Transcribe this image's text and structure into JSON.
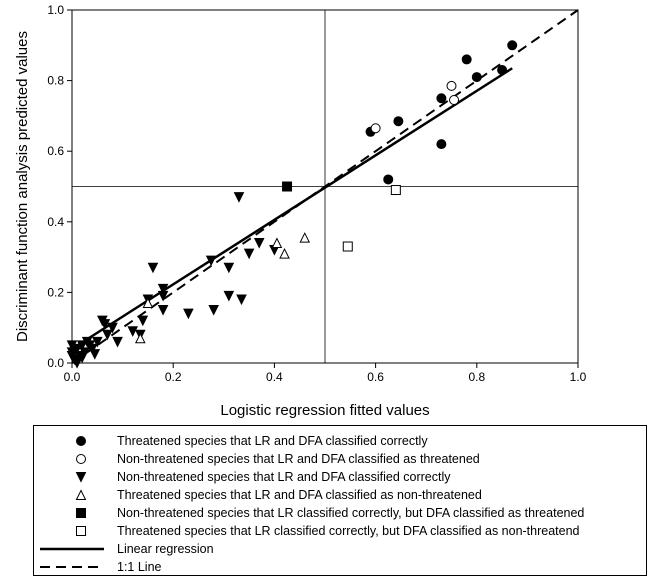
{
  "chart_data": {
    "type": "scatter",
    "xlabel": "Logistic regression fitted values",
    "ylabel": "Discriminant function analysis predicted values",
    "xlim": [
      0,
      1.0
    ],
    "ylim": [
      0,
      1.0
    ],
    "x_ticks": [
      "0.0",
      "0.2",
      "0.4",
      "0.6",
      "0.8",
      "1.0"
    ],
    "y_ticks": [
      "0.0",
      "0.2",
      "0.4",
      "0.6",
      "0.8",
      "1.0"
    ],
    "reference_lines": {
      "x": 0.5,
      "y": 0.5
    },
    "grid": false,
    "legend_placement": "below",
    "series": [
      {
        "name": "Threatened species that LR and DFA classified correctly",
        "marker": "circle-filled",
        "points": [
          [
            0.87,
            0.9
          ],
          [
            0.78,
            0.86
          ],
          [
            0.85,
            0.83
          ],
          [
            0.8,
            0.81
          ],
          [
            0.73,
            0.75
          ],
          [
            0.645,
            0.685
          ],
          [
            0.59,
            0.655
          ],
          [
            0.625,
            0.52
          ],
          [
            0.73,
            0.62
          ]
        ]
      },
      {
        "name": "Non-threatened species that LR and DFA classified as threatened",
        "marker": "circle-open",
        "points": [
          [
            0.6,
            0.665
          ],
          [
            0.75,
            0.785
          ],
          [
            0.755,
            0.745
          ]
        ]
      },
      {
        "name": "Non-threatened species that LR and DFA classified correctly",
        "marker": "triangle-down-filled",
        "points": [
          [
            0.0,
            0.05
          ],
          [
            0.0,
            0.03
          ],
          [
            0.0,
            0.02
          ],
          [
            0.005,
            0.01
          ],
          [
            0.01,
            0.0
          ],
          [
            0.01,
            0.04
          ],
          [
            0.015,
            0.02
          ],
          [
            0.02,
            0.015
          ],
          [
            0.02,
            0.05
          ],
          [
            0.025,
            0.03
          ],
          [
            0.03,
            0.06
          ],
          [
            0.035,
            0.05
          ],
          [
            0.04,
            0.04
          ],
          [
            0.045,
            0.025
          ],
          [
            0.05,
            0.06
          ],
          [
            0.06,
            0.12
          ],
          [
            0.065,
            0.11
          ],
          [
            0.07,
            0.08
          ],
          [
            0.08,
            0.1
          ],
          [
            0.09,
            0.06
          ],
          [
            0.12,
            0.09
          ],
          [
            0.135,
            0.08
          ],
          [
            0.14,
            0.12
          ],
          [
            0.15,
            0.18
          ],
          [
            0.16,
            0.27
          ],
          [
            0.18,
            0.21
          ],
          [
            0.18,
            0.19
          ],
          [
            0.18,
            0.15
          ],
          [
            0.23,
            0.14
          ],
          [
            0.275,
            0.29
          ],
          [
            0.28,
            0.15
          ],
          [
            0.31,
            0.27
          ],
          [
            0.31,
            0.19
          ],
          [
            0.33,
            0.47
          ],
          [
            0.335,
            0.18
          ],
          [
            0.35,
            0.31
          ],
          [
            0.37,
            0.34
          ],
          [
            0.4,
            0.32
          ]
        ]
      },
      {
        "name": "Threatened species that LR and DFA classified as non-threatened",
        "marker": "triangle-up-open",
        "points": [
          [
            0.135,
            0.07
          ],
          [
            0.15,
            0.17
          ],
          [
            0.405,
            0.34
          ],
          [
            0.42,
            0.31
          ],
          [
            0.46,
            0.355
          ]
        ]
      },
      {
        "name": "Non-threatened species that LR classified correctly, but DFA classified as threatened",
        "marker": "square-filled",
        "points": [
          [
            0.425,
            0.5
          ]
        ]
      },
      {
        "name": "Threatened species that LR classified correctly, but DFA classified as non-threatend",
        "marker": "square-open",
        "points": [
          [
            0.545,
            0.33
          ],
          [
            0.64,
            0.49
          ]
        ]
      }
    ],
    "lines": [
      {
        "name": "Linear regression",
        "style": "solid",
        "points": [
          [
            0.0,
            0.04
          ],
          [
            0.87,
            0.835
          ]
        ]
      },
      {
        "name": "1:1 Line",
        "style": "dashed",
        "points": [
          [
            0.0,
            0.0
          ],
          [
            1.0,
            1.0
          ]
        ]
      }
    ]
  }
}
